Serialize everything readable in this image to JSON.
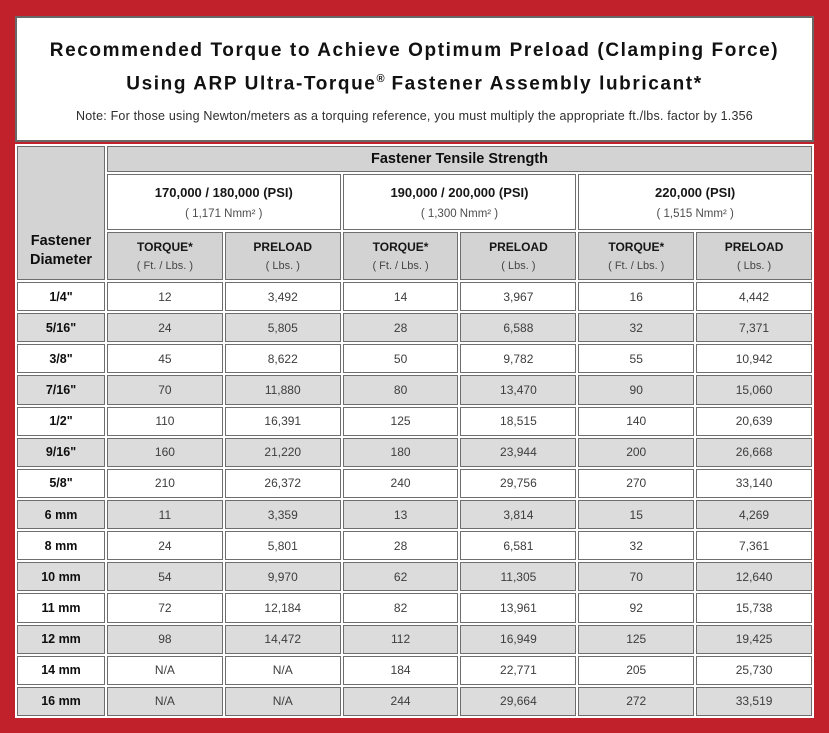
{
  "header": {
    "title_line1": "Recommended Torque to Achieve Optimum Preload (Clamping Force)",
    "title_line2": {
      "pre": "Using ARP Ultra-Torque",
      "sup": "®",
      "post": " Fastener Assembly lubricant*"
    },
    "note": "Note: For those using Newton/meters as a torquing reference, you must multiply the appropriate ft./lbs. factor by 1.356"
  },
  "table": {
    "corner_header": "Fastener Diameter",
    "group_header": "Fastener Tensile Strength",
    "strength_columns": [
      {
        "psi": "170,000 / 180,000 (PSI)",
        "nmm": "( 1,171 Nmm² )"
      },
      {
        "psi": "190,000 / 200,000 (PSI)",
        "nmm": "( 1,300 Nmm² )"
      },
      {
        "psi": "220,000 (PSI)",
        "nmm": "( 1,515 Nmm² )"
      }
    ],
    "measure_headers": [
      {
        "label": "TORQUE*",
        "unit": "( Ft. / Lbs. )"
      },
      {
        "label": "PRELOAD",
        "unit": "( Lbs. )"
      },
      {
        "label": "TORQUE*",
        "unit": "( Ft. / Lbs. )"
      },
      {
        "label": "PRELOAD",
        "unit": "( Lbs. )"
      },
      {
        "label": "TORQUE*",
        "unit": "( Ft. / Lbs. )"
      },
      {
        "label": "PRELOAD",
        "unit": "( Lbs. )"
      }
    ],
    "rows": [
      {
        "diameter": "1/4\"",
        "values": [
          "12",
          "3,492",
          "14",
          "3,967",
          "16",
          "4,442"
        ]
      },
      {
        "diameter": "5/16\"",
        "values": [
          "24",
          "5,805",
          "28",
          "6,588",
          "32",
          "7,371"
        ]
      },
      {
        "diameter": "3/8\"",
        "values": [
          "45",
          "8,622",
          "50",
          "9,782",
          "55",
          "10,942"
        ]
      },
      {
        "diameter": "7/16\"",
        "values": [
          "70",
          "11,880",
          "80",
          "13,470",
          "90",
          "15,060"
        ]
      },
      {
        "diameter": "1/2\"",
        "values": [
          "110",
          "16,391",
          "125",
          "18,515",
          "140",
          "20,639"
        ]
      },
      {
        "diameter": "9/16\"",
        "values": [
          "160",
          "21,220",
          "180",
          "23,944",
          "200",
          "26,668"
        ]
      },
      {
        "diameter": "5/8\"",
        "values": [
          "210",
          "26,372",
          "240",
          "29,756",
          "270",
          "33,140"
        ]
      },
      {
        "diameter": "6 mm",
        "values": [
          "11",
          "3,359",
          "13",
          "3,814",
          "15",
          "4,269"
        ]
      },
      {
        "diameter": "8 mm",
        "values": [
          "24",
          "5,801",
          "28",
          "6,581",
          "32",
          "7,361"
        ]
      },
      {
        "diameter": "10 mm",
        "values": [
          "54",
          "9,970",
          "62",
          "11,305",
          "70",
          "12,640"
        ]
      },
      {
        "diameter": "11 mm",
        "values": [
          "72",
          "12,184",
          "82",
          "13,961",
          "92",
          "15,738"
        ]
      },
      {
        "diameter": "12 mm",
        "values": [
          "98",
          "14,472",
          "112",
          "16,949",
          "125",
          "19,425"
        ]
      },
      {
        "diameter": "14 mm",
        "values": [
          "N/A",
          "N/A",
          "184",
          "22,771",
          "205",
          "25,730"
        ]
      },
      {
        "diameter": "16 mm",
        "values": [
          "N/A",
          "N/A",
          "244",
          "29,664",
          "272",
          "33,519"
        ]
      }
    ]
  },
  "colors": {
    "frame_red": "#C1212B",
    "header_gray": "#D3D3D3",
    "row_alt_gray": "#DCDCDC",
    "cell_border": "#6e6e6e"
  }
}
